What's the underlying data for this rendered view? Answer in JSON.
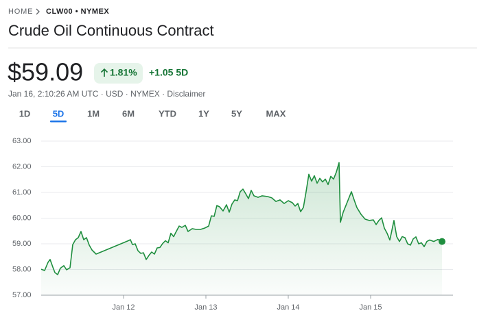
{
  "header": {
    "breadcrumb_home": "HOME",
    "breadcrumb_symbol": "CLW00 • NYMEX",
    "title": "Crude Oil Continuous Contract"
  },
  "quote": {
    "price": "$59.09",
    "change_percent": "1.81%",
    "change_period": "+1.05 5D",
    "info": "Jan 16, 2:10:26 AM UTC · USD · NYMEX · Disclaimer"
  },
  "tabs": {
    "items": [
      "1D",
      "5D",
      "1M",
      "6M",
      "YTD",
      "1Y",
      "5Y",
      "MAX"
    ],
    "selected": 1
  },
  "chart_data": {
    "type": "line",
    "color": "#1e8e3e",
    "grid": true,
    "xlim": [
      11,
      16
    ],
    "xticks": [
      {
        "value": 12,
        "label": "Jan 12"
      },
      {
        "value": 13,
        "label": "Jan 13"
      },
      {
        "value": 14,
        "label": "Jan 14"
      },
      {
        "value": 15,
        "label": "Jan 15"
      }
    ],
    "ylim": [
      57,
      63
    ],
    "yticks": [
      {
        "value": 57,
        "label": "57.00"
      },
      {
        "value": 58,
        "label": "58.00"
      },
      {
        "value": 59,
        "label": "59.00"
      },
      {
        "value": 60,
        "label": "60.00"
      },
      {
        "value": 61,
        "label": "61.00"
      },
      {
        "value": 62,
        "label": "62.00"
      },
      {
        "value": 63,
        "label": "63.00"
      }
    ],
    "x": [
      11.0,
      11.042,
      11.083,
      11.108,
      11.142,
      11.167,
      11.2,
      11.233,
      11.275,
      11.308,
      11.35,
      11.383,
      11.417,
      11.45,
      11.483,
      11.517,
      11.55,
      11.583,
      11.617,
      11.667,
      12.05,
      12.083,
      12.108,
      12.142,
      12.175,
      12.208,
      12.242,
      12.275,
      12.308,
      12.342,
      12.375,
      12.408,
      12.442,
      12.475,
      12.508,
      12.542,
      12.575,
      12.608,
      12.642,
      12.675,
      12.708,
      12.75,
      12.783,
      12.833,
      12.883,
      12.933,
      12.983,
      13.033,
      13.067,
      13.1,
      13.133,
      13.167,
      13.208,
      13.25,
      13.283,
      13.317,
      13.35,
      13.383,
      13.417,
      13.45,
      13.483,
      13.517,
      13.55,
      13.583,
      13.633,
      13.683,
      13.75,
      13.8,
      13.85,
      13.9,
      13.95,
      14,
      14.05,
      14.083,
      14.117,
      14.15,
      14.183,
      14.217,
      14.25,
      14.283,
      14.317,
      14.35,
      14.383,
      14.417,
      14.45,
      14.483,
      14.517,
      14.55,
      14.583,
      14.617,
      14.633,
      14.667,
      14.7,
      14.733,
      14.767,
      14.8,
      14.833,
      14.883,
      14.933,
      14.983,
      15.033,
      15.067,
      15.1,
      15.133,
      15.167,
      15.2,
      15.233,
      15.283,
      15.317,
      15.35,
      15.383,
      15.417,
      15.45,
      15.483,
      15.517,
      15.55,
      15.583,
      15.617,
      15.65,
      15.683,
      15.717,
      15.767,
      15.817,
      15.867
    ],
    "values": [
      58.01,
      57.96,
      58.28,
      58.39,
      58.09,
      57.88,
      57.8,
      58.05,
      58.15,
      57.99,
      58.07,
      58.97,
      59.16,
      59.24,
      59.48,
      59.16,
      59.24,
      58.95,
      58.76,
      58.6,
      59.11,
      59.16,
      58.97,
      59.0,
      58.73,
      58.63,
      58.65,
      58.39,
      58.55,
      58.68,
      58.6,
      58.84,
      58.86,
      59.01,
      59.12,
      59.04,
      59.41,
      59.28,
      59.49,
      59.69,
      59.64,
      59.72,
      59.48,
      59.59,
      59.56,
      59.56,
      59.61,
      59.69,
      60.09,
      60.07,
      60.49,
      60.44,
      60.28,
      60.52,
      60.23,
      60.55,
      60.71,
      60.68,
      61.03,
      61.13,
      60.95,
      60.76,
      61.08,
      60.87,
      60.81,
      60.87,
      60.84,
      60.79,
      60.65,
      60.71,
      60.57,
      60.68,
      60.6,
      60.47,
      60.57,
      60.25,
      60.41,
      61.03,
      61.71,
      61.44,
      61.65,
      61.36,
      61.55,
      61.41,
      61.52,
      61.31,
      61.63,
      61.52,
      61.79,
      62.16,
      59.84,
      60.23,
      60.49,
      60.76,
      61.03,
      60.71,
      60.41,
      60.15,
      59.96,
      59.91,
      59.93,
      59.75,
      59.91,
      60.01,
      59.61,
      59.41,
      59.15,
      59.91,
      59.28,
      59.09,
      59.28,
      59.24,
      59.0,
      58.95,
      59.19,
      59.27,
      59.0,
      59.04,
      58.89,
      59.09,
      59.15,
      59.09,
      59.17,
      59.09
    ]
  }
}
